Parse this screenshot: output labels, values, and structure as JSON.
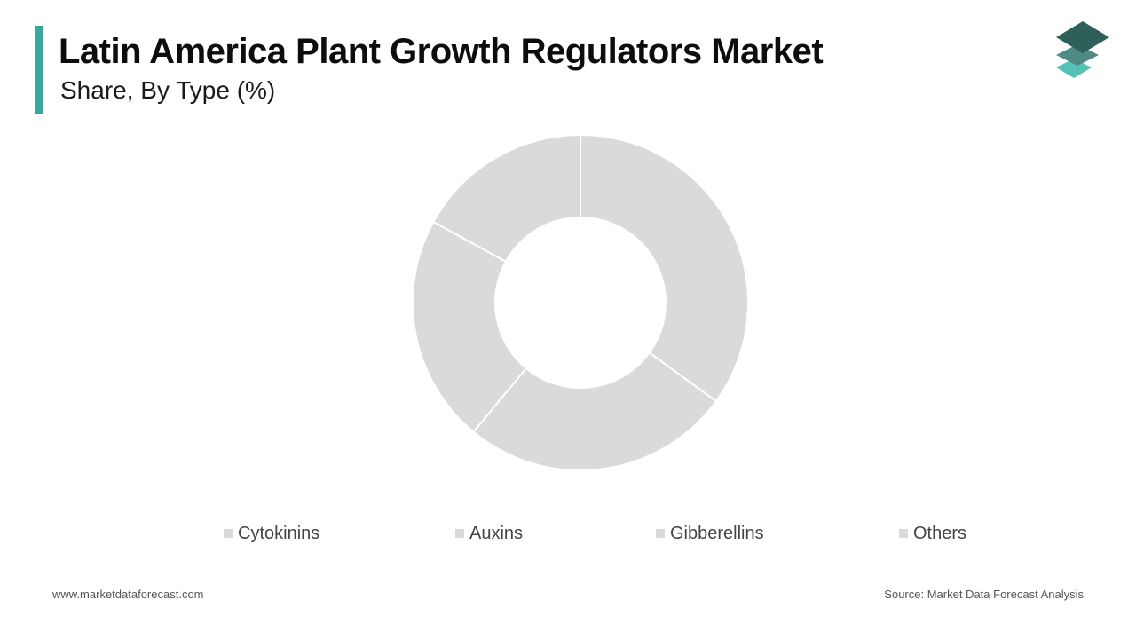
{
  "header": {
    "title": "Latin America Plant Growth Regulators Market",
    "subtitle": "Share, By Type (%)",
    "accent_color": "#3aa6a1"
  },
  "logo": {
    "icon": "stacked-layers-icon",
    "colors": [
      "#2f5f59",
      "#4f8b84",
      "#55c1b6"
    ]
  },
  "chart_data": {
    "type": "pie",
    "variant": "donut",
    "categories": [
      "Cytokinins",
      "Auxins",
      "Gibberellins",
      "Others"
    ],
    "values": [
      35,
      26,
      22,
      17
    ],
    "slice_color": "#dadada",
    "separator_color": "#ffffff",
    "legend_position": "bottom"
  },
  "footer": {
    "website": "www.marketdataforecast.com",
    "source": "Source: Market Data Forecast Analysis"
  }
}
